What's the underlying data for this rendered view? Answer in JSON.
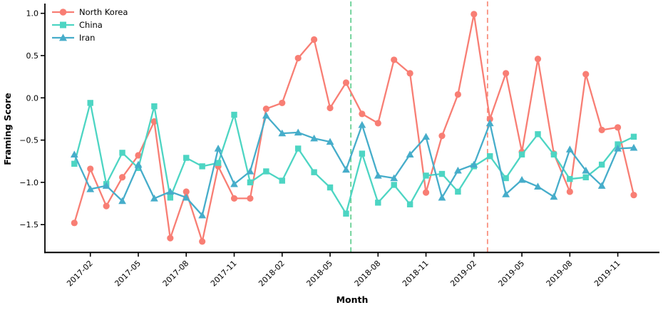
{
  "figure": {
    "background": "#ffffff",
    "text_color": "#000000"
  },
  "axes": {
    "x_label": "Month",
    "y_label": "Framing Score",
    "x_tick_labels": [
      "2017-02",
      "2017-05",
      "2017-08",
      "2017-11",
      "2018-02",
      "2018-05",
      "2018-08",
      "2018-11",
      "2019-02",
      "2019-05",
      "2019-08",
      "2019-11"
    ],
    "y_ticks": [
      {
        "value": 1.0,
        "label": "1.0"
      },
      {
        "value": 0.5,
        "label": "0.5"
      },
      {
        "value": 0.0,
        "label": "0.0"
      },
      {
        "value": -0.5,
        "label": "−0.5"
      },
      {
        "value": -1.0,
        "label": "−1.0"
      },
      {
        "value": -1.5,
        "label": "−1.5"
      }
    ]
  },
  "legend": {
    "position": "upper-left",
    "frame": false
  },
  "chart_data": {
    "type": "line",
    "title": "",
    "xlabel": "Month",
    "ylabel": "Framing Score",
    "ylim": [
      -1.83,
      1.16
    ],
    "grid": false,
    "legend_position": "upper-left",
    "x": [
      "2017-01",
      "2017-02",
      "2017-03",
      "2017-04",
      "2017-05",
      "2017-06",
      "2017-07",
      "2017-08",
      "2017-09",
      "2017-10",
      "2017-11",
      "2017-12",
      "2018-01",
      "2018-02",
      "2018-03",
      "2018-04",
      "2018-05",
      "2018-06",
      "2018-07",
      "2018-08",
      "2018-09",
      "2018-10",
      "2018-11",
      "2018-12",
      "2019-01",
      "2019-02",
      "2019-03",
      "2019-04",
      "2019-05",
      "2019-06",
      "2019-07",
      "2019-08",
      "2019-09",
      "2019-10",
      "2019-11",
      "2019-12"
    ],
    "series": [
      {
        "name": "North Korea",
        "color": "#f87e74",
        "marker": "circle",
        "values": [
          -1.48,
          -0.84,
          -1.28,
          -0.94,
          -0.68,
          -0.28,
          -1.66,
          -1.11,
          -1.7,
          -0.81,
          -1.19,
          -1.19,
          -0.13,
          -0.06,
          0.47,
          0.69,
          -0.12,
          0.18,
          -0.19,
          -0.3,
          0.45,
          0.29,
          -1.12,
          -0.45,
          0.04,
          0.99,
          -0.25,
          0.29,
          -0.64,
          0.46,
          -0.66,
          -1.11,
          0.28,
          -0.38,
          -0.35,
          -1.15
        ]
      },
      {
        "name": "China",
        "color": "#4dd5c3",
        "marker": "square",
        "values": [
          -0.78,
          -0.06,
          -1.02,
          -0.65,
          -0.83,
          -0.1,
          -1.18,
          -0.71,
          -0.81,
          -0.77,
          -0.2,
          -1.0,
          -0.87,
          -0.98,
          -0.6,
          -0.88,
          -1.06,
          -1.37,
          -0.66,
          -1.24,
          -1.03,
          -1.26,
          -0.92,
          -0.9,
          -1.11,
          -0.81,
          -0.69,
          -0.95,
          -0.67,
          -0.43,
          -0.67,
          -0.96,
          -0.94,
          -0.79,
          -0.55,
          -0.46
        ]
      },
      {
        "name": "Iran",
        "color": "#46adca",
        "marker": "triangle",
        "values": [
          -0.67,
          -1.08,
          -1.04,
          -1.22,
          -0.79,
          -1.19,
          -1.11,
          -1.18,
          -1.39,
          -0.6,
          -1.02,
          -0.87,
          -0.21,
          -0.42,
          -0.41,
          -0.48,
          -0.52,
          -0.85,
          -0.32,
          -0.92,
          -0.95,
          -0.67,
          -0.46,
          -1.18,
          -0.86,
          -0.79,
          -0.3,
          -1.14,
          -0.97,
          -1.05,
          -1.17,
          -0.61,
          -0.86,
          -1.04,
          -0.6,
          -0.59
        ]
      }
    ],
    "vlines": [
      {
        "month_index": 17.3,
        "between": "2018-06 and 2018-07",
        "color": "#67d094",
        "style": "dashed"
      },
      {
        "month_index": 25.85,
        "between": "2019-02 and 2019-03",
        "color": "#f9907f",
        "style": "dashed"
      }
    ]
  }
}
